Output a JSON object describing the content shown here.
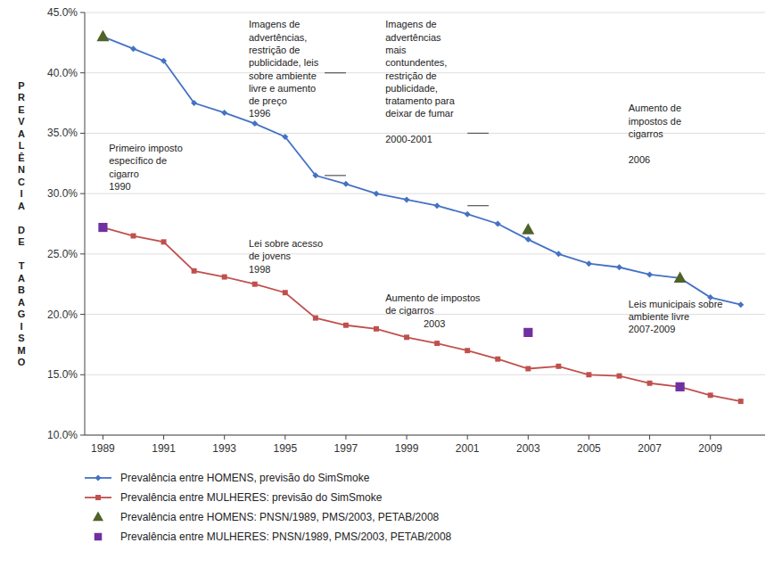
{
  "chart_data": {
    "type": "line",
    "y_label": "PREVALÊNCIA DE TABAGISMO",
    "series": [
      {
        "name": "Prevalência entre HOMENS, previsão do SimSmoke",
        "type": "line",
        "marker": "diamond",
        "color": "#4472C4",
        "x": [
          1989,
          1990,
          1991,
          1992,
          1993,
          1994,
          1995,
          1996,
          1997,
          1998,
          1999,
          2000,
          2001,
          2002,
          2003,
          2004,
          2005,
          2006,
          2007,
          2008,
          2009,
          2010
        ],
        "values": [
          0.43,
          0.42,
          0.41,
          0.375,
          0.367,
          0.358,
          0.347,
          0.315,
          0.308,
          0.3,
          0.295,
          0.29,
          0.283,
          0.275,
          0.262,
          0.25,
          0.242,
          0.239,
          0.233,
          0.23,
          0.214,
          0.208
        ]
      },
      {
        "name": "Prevalência entre MULHERES: previsão do SimSmoke",
        "type": "line",
        "marker": "square",
        "color": "#C0504D",
        "x": [
          1989,
          1990,
          1991,
          1992,
          1993,
          1994,
          1995,
          1996,
          1997,
          1998,
          1999,
          2000,
          2001,
          2002,
          2003,
          2004,
          2005,
          2006,
          2007,
          2008,
          2009,
          2010
        ],
        "values": [
          0.272,
          0.265,
          0.26,
          0.236,
          0.231,
          0.225,
          0.218,
          0.197,
          0.191,
          0.188,
          0.181,
          0.176,
          0.17,
          0.163,
          0.155,
          0.157,
          0.15,
          0.149,
          0.143,
          0.14,
          0.133,
          0.128
        ]
      },
      {
        "name": "Prevalência entre HOMENS: PNSN/1989, PMS/2003, PETAB/2008",
        "type": "scatter",
        "marker": "triangle",
        "color": "#4F6228",
        "x": [
          1989,
          2003,
          2008
        ],
        "values": [
          0.43,
          0.27,
          0.23
        ]
      },
      {
        "name": "Prevalência entre MULHERES: PNSN/1989, PMS/2003, PETAB/2008",
        "type": "scatter",
        "marker": "square",
        "color": "#7030A0",
        "x": [
          1989,
          2003,
          2008
        ],
        "values": [
          0.272,
          0.185,
          0.14
        ]
      }
    ],
    "xlim": [
      1988.4,
      2010.8
    ],
    "xticks": [
      1989,
      1991,
      1993,
      1995,
      1997,
      1999,
      2001,
      2003,
      2005,
      2007,
      2009
    ],
    "ylim": [
      0.1,
      0.45
    ],
    "yticks": [
      {
        "value": 0.1,
        "label": "10.0%"
      },
      {
        "value": 0.15,
        "label": "15.0%"
      },
      {
        "value": 0.2,
        "label": "20.0%"
      },
      {
        "value": 0.25,
        "label": "25.0%"
      },
      {
        "value": 0.3,
        "label": "30.0%"
      },
      {
        "value": 0.35,
        "label": "35.0%"
      },
      {
        "value": 0.4,
        "label": "40.0%"
      },
      {
        "value": 0.45,
        "label": "45.0%"
      }
    ],
    "grid": "y",
    "legend": "bottom",
    "annotations": [
      {
        "text": "Primeiro imposto\nespecífico de\ncigarro\n1990",
        "x": 1989.2,
        "y": 0.342
      },
      {
        "text": "Imagens de\nadvertências,\nrestrição de\npublicidade, leis\nsobre ambiente\nlivre e aumento\nde preço\n1996",
        "x": 1993.8,
        "y": 0.4445
      },
      {
        "text": "Imagens de\nadvertências\nmais\ncontundentes,\nrestrição de\npublicidade,\ntratamento para\ndeixar de fumar\n\n2000-2001",
        "x": 1998.3,
        "y": 0.4445
      },
      {
        "text": "Lei sobre acesso\nde jovens\n1998",
        "x": 1993.8,
        "y": 0.263
      },
      {
        "text": "Aumento de impostos\nde cigarros\n              2003",
        "x": 1998.3,
        "y": 0.218
      },
      {
        "text": "Aumento de\nimpostos de\ncigarros\n\n2006",
        "x": 2006.3,
        "y": 0.375
      },
      {
        "text": "Leis municipais sobre\nambiente livre\n2007-2009",
        "x": 2006.3,
        "y": 0.213
      }
    ],
    "annotation_lines": [
      {
        "x": [
          1996.3,
          1997.0
        ],
        "y": 0.4
      },
      {
        "x": [
          1996.3,
          1997.0
        ],
        "y": 0.315
      },
      {
        "x": [
          2001.0,
          2001.7
        ],
        "y": 0.35
      },
      {
        "x": [
          2001.0,
          2001.7
        ],
        "y": 0.29
      }
    ]
  }
}
